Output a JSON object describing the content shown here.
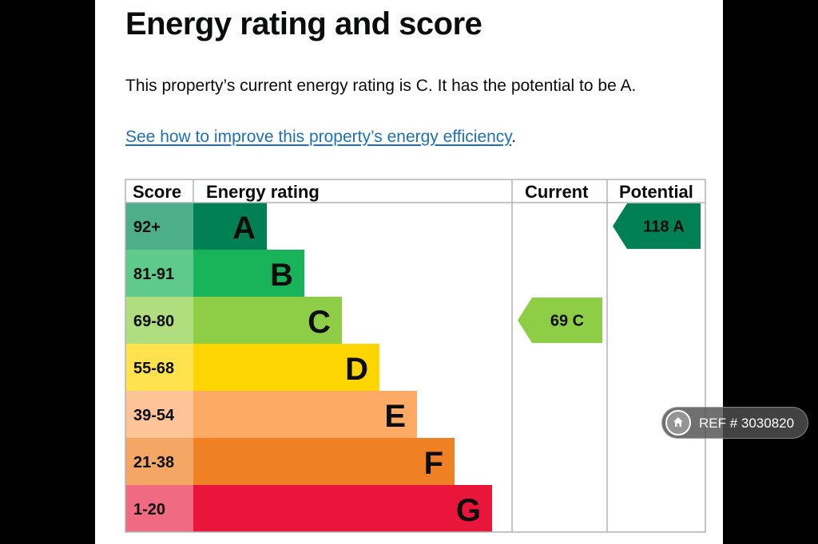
{
  "page": {
    "title": "Energy rating and score",
    "summary": "This property’s current energy rating is C. It has the potential to be A.",
    "improve_link": "See how to improve this property’s energy efficiency",
    "improve_suffix": "."
  },
  "chart_data": {
    "type": "table",
    "headers": [
      "Score",
      "Energy rating",
      "Current",
      "Potential"
    ],
    "bands": [
      {
        "band": "A",
        "score": "92+",
        "color": "#008054",
        "score_bg": "#4dae8c"
      },
      {
        "band": "B",
        "score": "81-91",
        "color": "#19b459",
        "score_bg": "#5ecb8b"
      },
      {
        "band": "C",
        "score": "69-80",
        "color": "#8dce46",
        "score_bg": "#b0dd7e"
      },
      {
        "band": "D",
        "score": "55-68",
        "color": "#ffd500",
        "score_bg": "#ffe24d"
      },
      {
        "band": "E",
        "score": "39-54",
        "color": "#fcaa65",
        "score_bg": "#fdc497"
      },
      {
        "band": "F",
        "score": "21-38",
        "color": "#ef8023",
        "score_bg": "#f4a665"
      },
      {
        "band": "G",
        "score": "1-20",
        "color": "#e9153b",
        "score_bg": "#f06a82"
      }
    ],
    "current": {
      "score": 69,
      "band": "C",
      "label": "69  C"
    },
    "potential": {
      "score": 118,
      "band": "A",
      "label": "118  A"
    }
  },
  "watermark": {
    "icon": "home-icon",
    "text": "REF # 3030820"
  }
}
